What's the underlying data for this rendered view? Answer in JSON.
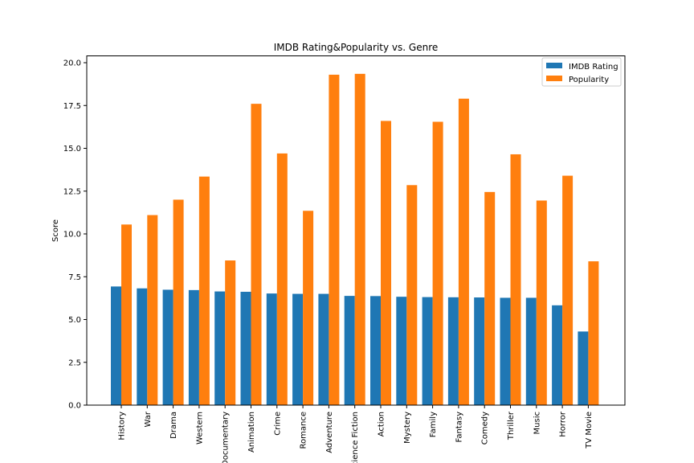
{
  "chart_data": {
    "type": "bar",
    "title": "IMDB Rating&Popularity vs. Genre",
    "xlabel": "",
    "ylabel": "Score",
    "ylim": [
      0,
      20.4
    ],
    "yticks": [
      0,
      2.5,
      5,
      7.5,
      10,
      12.5,
      15,
      17.5,
      20
    ],
    "ytick_labels": [
      "0.0",
      "2.5",
      "5.0",
      "7.5",
      "10.0",
      "12.5",
      "15.0",
      "17.5",
      "20.0"
    ],
    "categories": [
      "History",
      "War",
      "Drama",
      "Western",
      "Documentary",
      "Animation",
      "Crime",
      "Romance",
      "Adventure",
      "Science Fiction",
      "Action",
      "Mystery",
      "Family",
      "Fantasy",
      "Comedy",
      "Thriller",
      "Music",
      "Horror",
      "TV Movie"
    ],
    "series": [
      {
        "name": "IMDB Rating",
        "color": "#1f77b4",
        "values": [
          6.93,
          6.82,
          6.74,
          6.72,
          6.64,
          6.62,
          6.52,
          6.5,
          6.5,
          6.38,
          6.37,
          6.33,
          6.31,
          6.3,
          6.29,
          6.27,
          6.27,
          5.83,
          4.3
        ]
      },
      {
        "name": "Popularity",
        "color": "#ff7f0e",
        "values": [
          10.55,
          11.1,
          12.0,
          13.35,
          8.45,
          17.6,
          14.7,
          11.35,
          19.3,
          19.35,
          16.6,
          12.85,
          16.55,
          17.9,
          12.45,
          14.65,
          11.95,
          13.4,
          8.4
        ]
      }
    ],
    "legend_position": "top-right",
    "grid": false
  }
}
